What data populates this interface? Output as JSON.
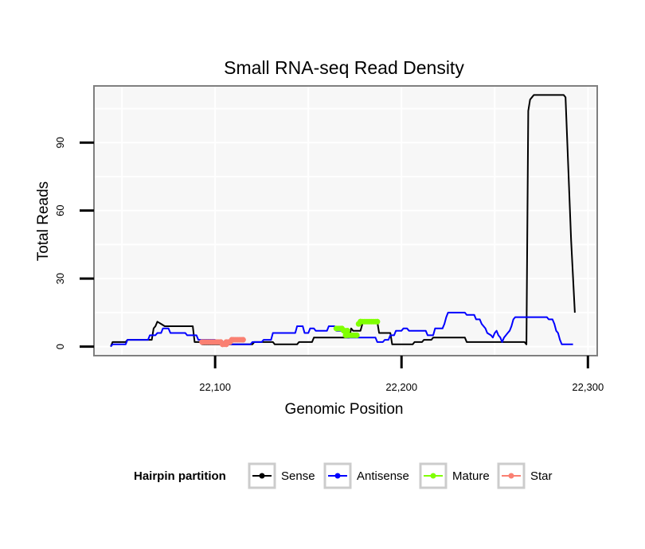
{
  "chart_data": {
    "type": "line",
    "title": "Small RNA-seq Read Density",
    "xlabel": "Genomic Position",
    "ylabel": "Total Reads",
    "xlim": [
      22035,
      22305
    ],
    "ylim": [
      -4,
      115
    ],
    "x_ticks": [
      22100,
      22200,
      22300
    ],
    "x_tick_labels": [
      "22,100",
      "22,200",
      "22,300"
    ],
    "y_ticks": [
      0,
      30,
      60,
      90
    ],
    "y_tick_labels": [
      "0",
      "30",
      "60",
      "90"
    ],
    "grid": true,
    "legend": {
      "title": "Hairpin partition",
      "position": "bottom",
      "entries": [
        "Sense",
        "Antisense",
        "Mature",
        "Star"
      ]
    },
    "series": [
      {
        "name": "Sense",
        "color": "#000000",
        "points": [
          [
            22044,
            0
          ],
          [
            22045,
            2
          ],
          [
            22052,
            2
          ],
          [
            22053,
            3
          ],
          [
            22066,
            3
          ],
          [
            22067,
            8
          ],
          [
            22068,
            9
          ],
          [
            22069,
            11
          ],
          [
            22071,
            10
          ],
          [
            22073,
            9
          ],
          [
            22088,
            9
          ],
          [
            22089,
            2
          ],
          [
            22092,
            2
          ],
          [
            22093,
            1
          ],
          [
            22120,
            1
          ],
          [
            22121,
            2
          ],
          [
            22131,
            2
          ],
          [
            22132,
            1
          ],
          [
            22144,
            1
          ],
          [
            22145,
            2
          ],
          [
            22152,
            2
          ],
          [
            22153,
            4
          ],
          [
            22172,
            4
          ],
          [
            22173,
            8
          ],
          [
            22174,
            7
          ],
          [
            22178,
            7
          ],
          [
            22179,
            10
          ],
          [
            22180,
            11
          ],
          [
            22187,
            11
          ],
          [
            22188,
            6
          ],
          [
            22194,
            6
          ],
          [
            22195,
            1
          ],
          [
            22206,
            1
          ],
          [
            22207,
            2
          ],
          [
            22211,
            2
          ],
          [
            22212,
            3
          ],
          [
            22216,
            3
          ],
          [
            22217,
            4
          ],
          [
            22234,
            4
          ],
          [
            22235,
            2
          ],
          [
            22266,
            2
          ],
          [
            22267,
            1
          ],
          [
            22268,
            104
          ],
          [
            22269,
            109
          ],
          [
            22270,
            110
          ],
          [
            22271,
            111
          ],
          [
            22287,
            111
          ],
          [
            22288,
            110
          ],
          [
            22291,
            47
          ],
          [
            22293,
            15
          ]
        ]
      },
      {
        "name": "Antisense",
        "color": "#0000ff",
        "points": [
          [
            22044,
            0
          ],
          [
            22045,
            1
          ],
          [
            22052,
            1
          ],
          [
            22053,
            3
          ],
          [
            22064,
            3
          ],
          [
            22065,
            5
          ],
          [
            22068,
            5
          ],
          [
            22069,
            6
          ],
          [
            22071,
            6
          ],
          [
            22072,
            8
          ],
          [
            22075,
            8
          ],
          [
            22076,
            6
          ],
          [
            22084,
            6
          ],
          [
            22085,
            5
          ],
          [
            22090,
            5
          ],
          [
            22091,
            3
          ],
          [
            22100,
            3
          ],
          [
            22101,
            2
          ],
          [
            22107,
            2
          ],
          [
            22108,
            1
          ],
          [
            22119,
            1
          ],
          [
            22120,
            2
          ],
          [
            22125,
            2
          ],
          [
            22126,
            3
          ],
          [
            22130,
            3
          ],
          [
            22131,
            6
          ],
          [
            22143,
            6
          ],
          [
            22144,
            9
          ],
          [
            22147,
            9
          ],
          [
            22148,
            6
          ],
          [
            22150,
            6
          ],
          [
            22151,
            8
          ],
          [
            22153,
            8
          ],
          [
            22154,
            7
          ],
          [
            22160,
            7
          ],
          [
            22161,
            9
          ],
          [
            22164,
            9
          ],
          [
            22165,
            7
          ],
          [
            22170,
            7
          ],
          [
            22171,
            4
          ],
          [
            22186,
            4
          ],
          [
            22187,
            2
          ],
          [
            22190,
            2
          ],
          [
            22191,
            3
          ],
          [
            22193,
            3
          ],
          [
            22194,
            5
          ],
          [
            22196,
            5
          ],
          [
            22197,
            7
          ],
          [
            22200,
            7
          ],
          [
            22201,
            8
          ],
          [
            22203,
            8
          ],
          [
            22204,
            7
          ],
          [
            22213,
            7
          ],
          [
            22214,
            5
          ],
          [
            22217,
            5
          ],
          [
            22218,
            8
          ],
          [
            22222,
            8
          ],
          [
            22223,
            10
          ],
          [
            22224,
            13
          ],
          [
            22225,
            15
          ],
          [
            22234,
            15
          ],
          [
            22235,
            14
          ],
          [
            22239,
            14
          ],
          [
            22240,
            12
          ],
          [
            22242,
            12
          ],
          [
            22243,
            10
          ],
          [
            22245,
            8
          ],
          [
            22246,
            6
          ],
          [
            22248,
            5
          ],
          [
            22249,
            4
          ],
          [
            22250,
            6
          ],
          [
            22251,
            7
          ],
          [
            22252,
            5
          ],
          [
            22253,
            4
          ],
          [
            22254,
            2
          ],
          [
            22255,
            4
          ],
          [
            22256,
            5
          ],
          [
            22257,
            6
          ],
          [
            22258,
            7
          ],
          [
            22259,
            9
          ],
          [
            22260,
            12
          ],
          [
            22261,
            13
          ],
          [
            22278,
            13
          ],
          [
            22279,
            12
          ],
          [
            22281,
            12
          ],
          [
            22282,
            10
          ],
          [
            22283,
            7
          ],
          [
            22284,
            6
          ],
          [
            22285,
            3
          ],
          [
            22286,
            1
          ],
          [
            22292,
            1
          ]
        ]
      },
      {
        "name": "Mature",
        "color": "#80ff00",
        "segments": [
          [
            [
              22165,
              8
            ],
            [
              22168,
              8
            ],
            [
              22169,
              7
            ],
            [
              22171,
              7
            ]
          ],
          [
            [
              22170,
              5
            ],
            [
              22176,
              5
            ]
          ],
          [
            [
              22177,
              10
            ],
            [
              22178,
              11
            ],
            [
              22187,
              11
            ]
          ]
        ]
      },
      {
        "name": "Star",
        "color": "#fa8072",
        "segments": [
          [
            [
              22093,
              2
            ],
            [
              22103,
              2
            ],
            [
              22104,
              1
            ],
            [
              22106,
              1
            ]
          ],
          [
            [
              22106,
              2
            ],
            [
              22108,
              2
            ],
            [
              22109,
              3
            ],
            [
              22115,
              3
            ]
          ]
        ]
      }
    ]
  }
}
